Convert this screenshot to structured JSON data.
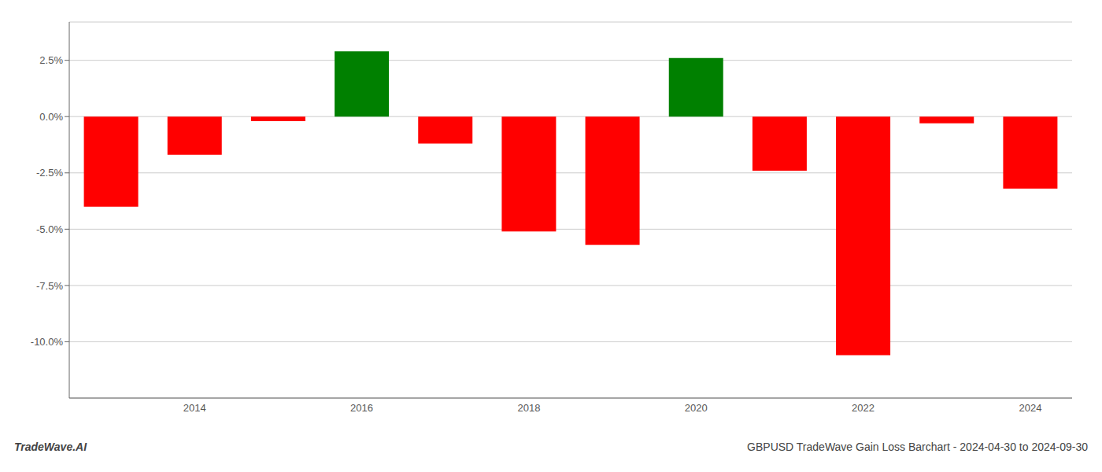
{
  "chart_data": {
    "type": "bar",
    "categories": [
      null,
      "2014",
      null,
      "2016",
      null,
      "2018",
      null,
      "2020",
      null,
      "2022",
      null,
      "2024"
    ],
    "values": [
      -4.0,
      -1.7,
      -0.2,
      2.9,
      -1.2,
      -5.1,
      -5.7,
      2.6,
      -2.4,
      -10.6,
      -0.3,
      -3.2
    ],
    "colors": [
      "#ff0000",
      "#ff0000",
      "#ff0000",
      "#008000",
      "#ff0000",
      "#ff0000",
      "#ff0000",
      "#008000",
      "#ff0000",
      "#ff0000",
      "#ff0000",
      "#ff0000"
    ],
    "ylim": [
      -12.5,
      4.2
    ],
    "yticks": [
      {
        "value": 2.5,
        "label": "2.5%"
      },
      {
        "value": 0.0,
        "label": "0.0%"
      },
      {
        "value": -2.5,
        "label": "-2.5%"
      },
      {
        "value": -5.0,
        "label": "-5.0%"
      },
      {
        "value": -7.5,
        "label": "-7.5%"
      },
      {
        "value": -10.0,
        "label": "-10.0%"
      }
    ],
    "grid": true,
    "annotations": [
      "TradeWave.AI",
      "GBPUSD TradeWave Gain Loss Barchart - 2024-04-30 to 2024-09-30"
    ]
  }
}
